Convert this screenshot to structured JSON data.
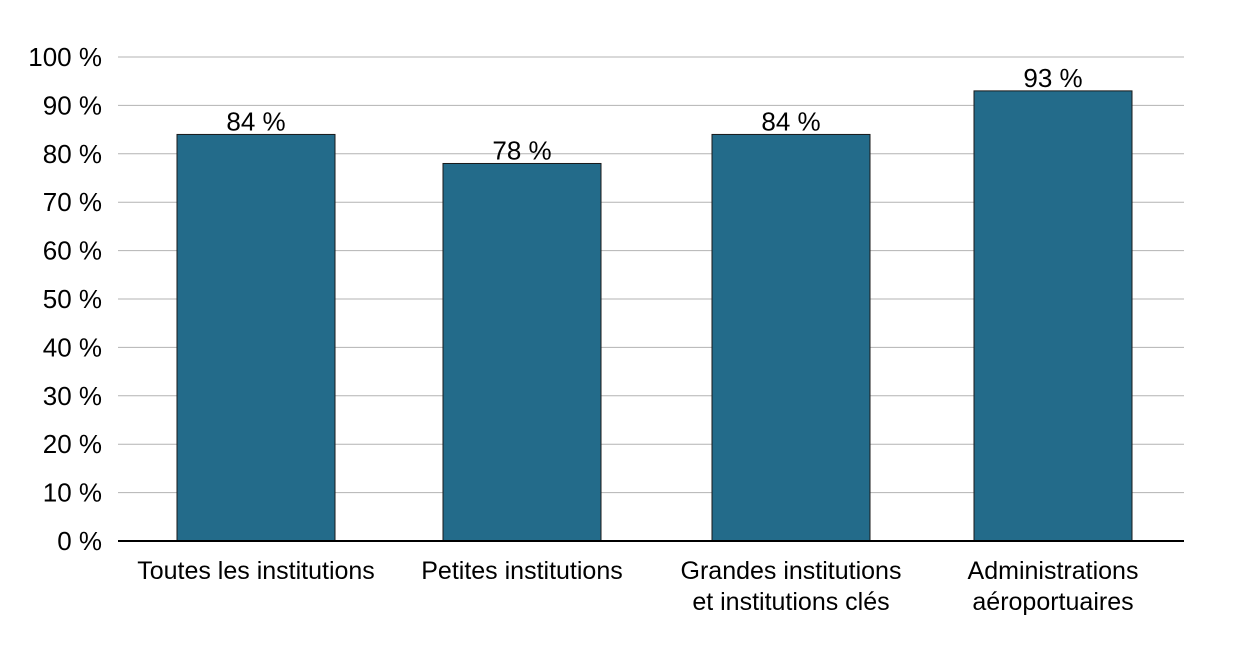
{
  "chart_data": {
    "type": "bar",
    "categories": [
      [
        "Toutes les institutions"
      ],
      [
        "Petites institutions"
      ],
      [
        "Grandes institutions",
        "et institutions clés"
      ],
      [
        "Administrations",
        "aéroportuaires"
      ]
    ],
    "values": [
      84,
      78,
      84,
      93
    ],
    "data_labels": [
      "84 %",
      "78 %",
      "84 %",
      "93 %"
    ],
    "ylim": [
      0,
      100
    ],
    "yticks": [
      0,
      10,
      20,
      30,
      40,
      50,
      60,
      70,
      80,
      90,
      100
    ],
    "ytick_labels": [
      "0 %",
      "10 %",
      "20 %",
      "30 %",
      "40 %",
      "50 %",
      "60 %",
      "70 %",
      "80 %",
      "90 %",
      "100 %"
    ],
    "title": "",
    "xlabel": "",
    "ylabel": "",
    "grid": true,
    "bar_color": "#236b8a"
  }
}
